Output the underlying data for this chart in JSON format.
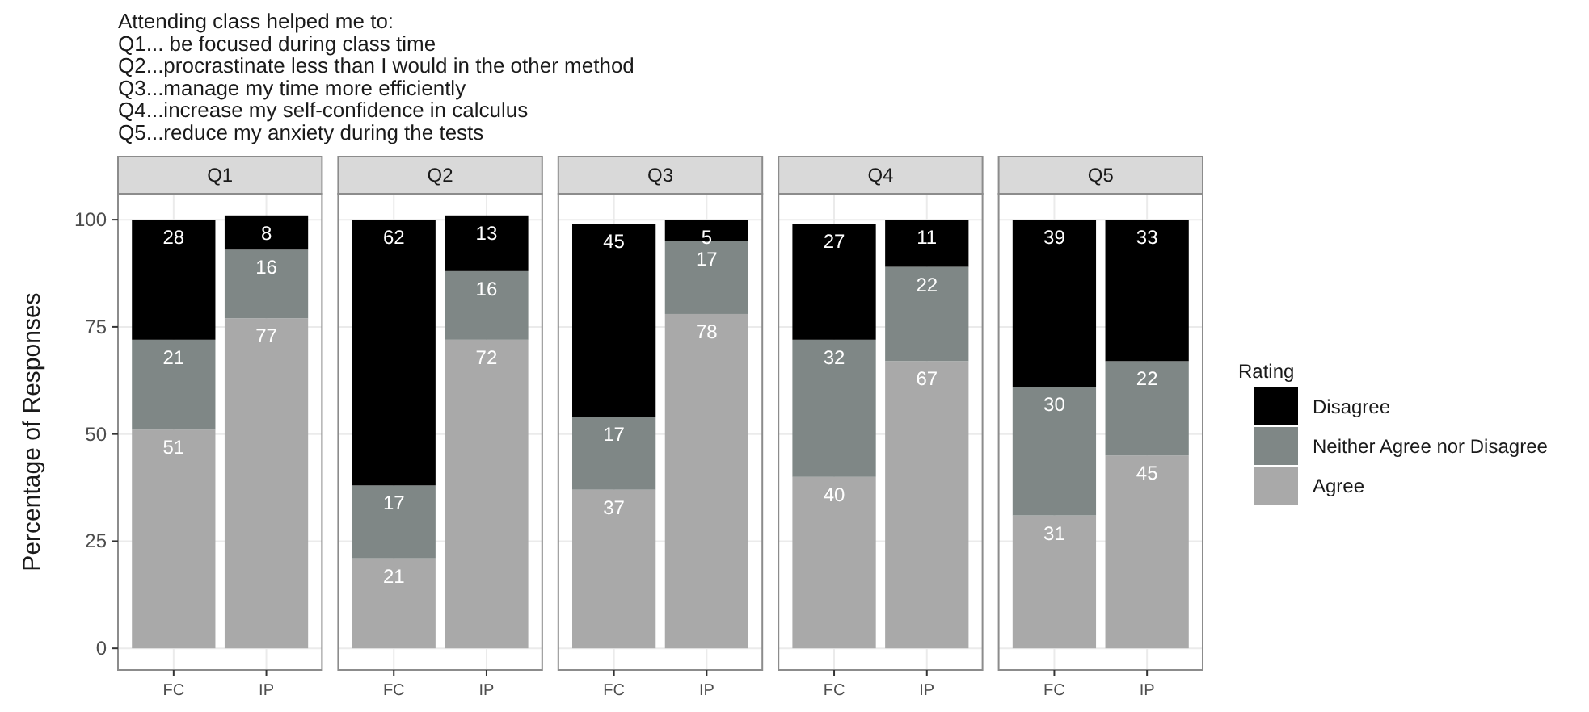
{
  "chart_data": [
    {
      "type": "bar",
      "title": "Q1",
      "categories": [
        "FC",
        "IP"
      ],
      "stacked": true,
      "series": [
        {
          "color": "#a9a9a9",
          "values": [
            51,
            77
          ]
        },
        {
          "color": "#7f8786",
          "values": [
            21,
            16
          ]
        },
        {
          "color": "#000000",
          "values": [
            28,
            8
          ]
        }
      ],
      "ylim": [
        -5.05,
        106.05
      ],
      "yticks": [
        0,
        25,
        50,
        75,
        100
      ],
      "grid": true,
      "data_labels": true,
      "ylabel": "Percentage of Responses",
      "annotations": [
        "Attending class helped me to:",
        "Q1... be focused during class time",
        "Q2...procrastinate less than I would in the other method",
        "Q3...manage my time more efficiently",
        "Q4...increase my self-confidence in calculus",
        "Q5...reduce my anxiety during the tests"
      ]
    },
    {
      "type": "bar",
      "title": "Q2",
      "categories": [
        "FC",
        "IP"
      ],
      "stacked": true,
      "series": [
        {
          "color": "#a9a9a9",
          "values": [
            21,
            72
          ]
        },
        {
          "color": "#7f8786",
          "values": [
            17,
            16
          ]
        },
        {
          "color": "#000000",
          "values": [
            62,
            13
          ]
        }
      ],
      "ylim": [
        -5.05,
        106.05
      ],
      "yticks": [
        0,
        25,
        50,
        75,
        100
      ],
      "grid": true,
      "data_labels": true,
      "tick_labels": "x"
    },
    {
      "type": "bar",
      "title": "Q3",
      "categories": [
        "FC",
        "IP"
      ],
      "stacked": true,
      "series": [
        {
          "color": "#a9a9a9",
          "values": [
            37,
            78
          ]
        },
        {
          "color": "#7f8786",
          "values": [
            17,
            17
          ]
        },
        {
          "color": "#000000",
          "values": [
            45,
            5
          ]
        }
      ],
      "ylim": [
        -5.05,
        106.05
      ],
      "yticks": [
        0,
        25,
        50,
        75,
        100
      ],
      "grid": true,
      "data_labels": true,
      "tick_labels": "x"
    },
    {
      "type": "bar",
      "title": "Q4",
      "categories": [
        "FC",
        "IP"
      ],
      "stacked": true,
      "series": [
        {
          "color": "#a9a9a9",
          "values": [
            40,
            67
          ]
        },
        {
          "color": "#7f8786",
          "values": [
            32,
            22
          ]
        },
        {
          "color": "#000000",
          "values": [
            27,
            11
          ]
        }
      ],
      "ylim": [
        -5.05,
        106.05
      ],
      "yticks": [
        0,
        25,
        50,
        75,
        100
      ],
      "grid": true,
      "data_labels": true,
      "tick_labels": "x"
    },
    {
      "type": "bar",
      "title": "Q5",
      "categories": [
        "FC",
        "IP"
      ],
      "stacked": true,
      "series": [
        {
          "name": "Agree",
          "color": "#a9a9a9",
          "values": [
            31,
            45
          ]
        },
        {
          "name": "Neither Agree nor Disagree",
          "color": "#7f8786",
          "values": [
            30,
            22
          ]
        },
        {
          "name": "Disagree",
          "color": "#000000",
          "values": [
            39,
            33
          ]
        }
      ],
      "ylim": [
        -5.05,
        106.05
      ],
      "yticks": [
        0,
        25,
        50,
        75,
        100
      ],
      "grid": true,
      "data_labels": true,
      "tick_labels": "x",
      "legend": "right",
      "legend_title": "Rating"
    }
  ]
}
